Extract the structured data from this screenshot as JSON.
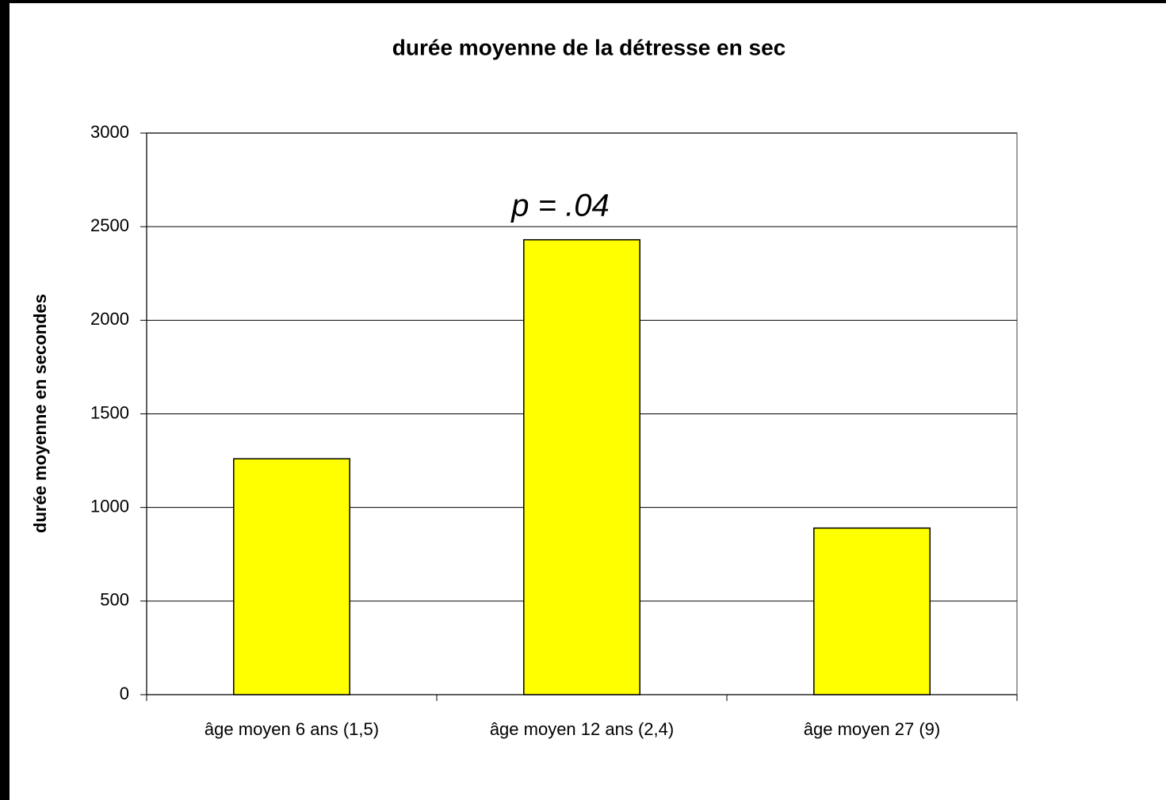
{
  "chart_data": {
    "type": "bar",
    "title": "durée moyenne de la détresse en sec",
    "y_label": "durée moyenne en secondes",
    "annotation": "p = .04",
    "categories": [
      "âge moyen 6 ans (1,5)",
      "âge moyen 12 ans (2,4)",
      "âge moyen 27 (9)"
    ],
    "values": [
      1260,
      2430,
      890
    ],
    "color": "#ffff00",
    "ylim": [
      0,
      3000
    ],
    "yticks": [
      0,
      500,
      1000,
      1500,
      2000,
      2500,
      3000
    ],
    "grid": true
  }
}
